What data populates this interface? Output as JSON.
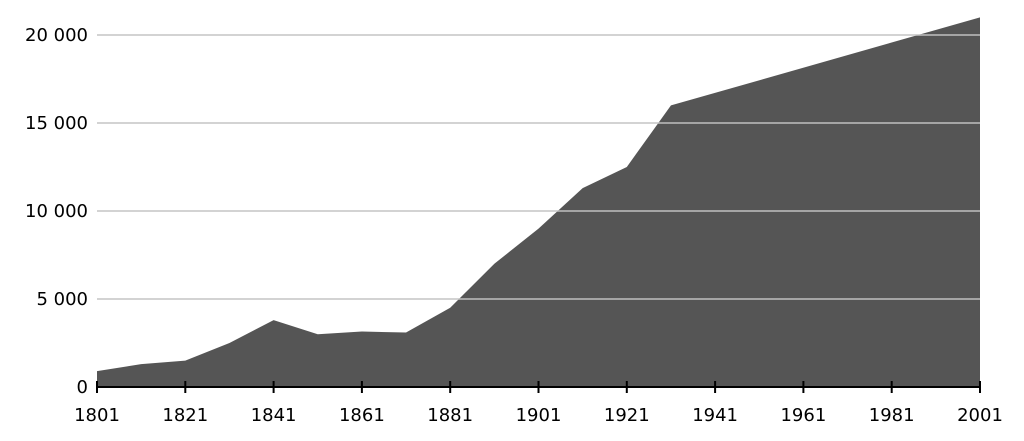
{
  "chart_data": {
    "type": "area",
    "title": "",
    "xlabel": "",
    "ylabel": "",
    "x": [
      1801,
      1811,
      1821,
      1831,
      1841,
      1851,
      1861,
      1871,
      1881,
      1891,
      1901,
      1911,
      1921,
      1931,
      2001
    ],
    "series": [
      {
        "values": [
          900,
          1300,
          1500,
          2500,
          3800,
          3000,
          3150,
          3100,
          4500,
          7000,
          9000,
          11300,
          12500,
          16000,
          21000
        ]
      }
    ],
    "x_ticks": [
      1801,
      1821,
      1841,
      1861,
      1881,
      1901,
      1921,
      1941,
      1961,
      1981,
      2001
    ],
    "x_tick_labels": [
      "1801",
      "1821",
      "1841",
      "1861",
      "1881",
      "1901",
      "1921",
      "1941",
      "1961",
      "1981",
      "2001"
    ],
    "y_ticks": [
      0,
      5000,
      10000,
      15000,
      20000
    ],
    "y_tick_labels": [
      "0",
      "5 000",
      "10 000",
      "15 000",
      "20 000"
    ],
    "xlim": [
      1801,
      2001
    ],
    "ylim": [
      0,
      20000
    ],
    "grid": "horizontal",
    "legend": "none",
    "colors": {
      "area": "#555555",
      "grid": "#cccccc",
      "axis": "#000000",
      "text": "#000000"
    }
  }
}
